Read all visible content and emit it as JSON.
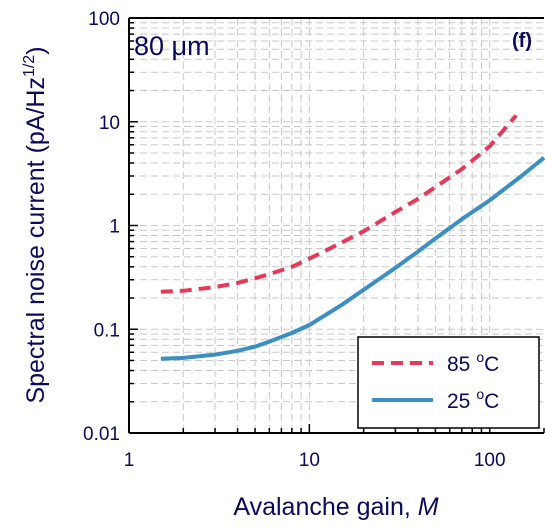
{
  "chart_data": {
    "type": "line",
    "xlabel": "Avalanche gain,",
    "xlabel_var": "M",
    "ylabel": "Spectral noise current (pA/Hz",
    "ylabel_sup": "1/2",
    "ylabel_close": ")",
    "xscale": "log",
    "yscale": "log",
    "xlim": [
      1,
      200
    ],
    "ylim": [
      0.01,
      100
    ],
    "grid": true,
    "x_ticks": [
      1,
      10,
      100
    ],
    "x_tick_labels": [
      "1",
      "10",
      "100"
    ],
    "y_ticks": [
      0.01,
      0.1,
      1,
      10,
      100
    ],
    "y_tick_labels": [
      "0.01",
      "0.1",
      "1",
      "10",
      "100"
    ],
    "annotation_size": "80 μm",
    "annotation_panel": "(f)",
    "legend_position": "bottom-right",
    "series": [
      {
        "name": "85 °C",
        "label_value": "85",
        "label_unit": "C",
        "color": "#e8385a",
        "dash": "dashed",
        "x": [
          1.5,
          2,
          3,
          4,
          5,
          6,
          8,
          10,
          15,
          20,
          30,
          40,
          50,
          70,
          100,
          140
        ],
        "y": [
          0.23,
          0.235,
          0.255,
          0.28,
          0.31,
          0.34,
          0.4,
          0.48,
          0.68,
          0.88,
          1.35,
          1.8,
          2.35,
          3.5,
          5.8,
          11.5
        ]
      },
      {
        "name": "25 °C",
        "label_value": "25",
        "label_unit": "C",
        "color": "#3b8fc2",
        "dash": "solid",
        "x": [
          1.5,
          2,
          3,
          4,
          5,
          6,
          8,
          10,
          15,
          20,
          30,
          40,
          50,
          70,
          100,
          150,
          200
        ],
        "y": [
          0.052,
          0.053,
          0.057,
          0.062,
          0.068,
          0.076,
          0.092,
          0.11,
          0.17,
          0.24,
          0.39,
          0.56,
          0.75,
          1.15,
          1.75,
          3.0,
          4.5
        ]
      }
    ]
  }
}
